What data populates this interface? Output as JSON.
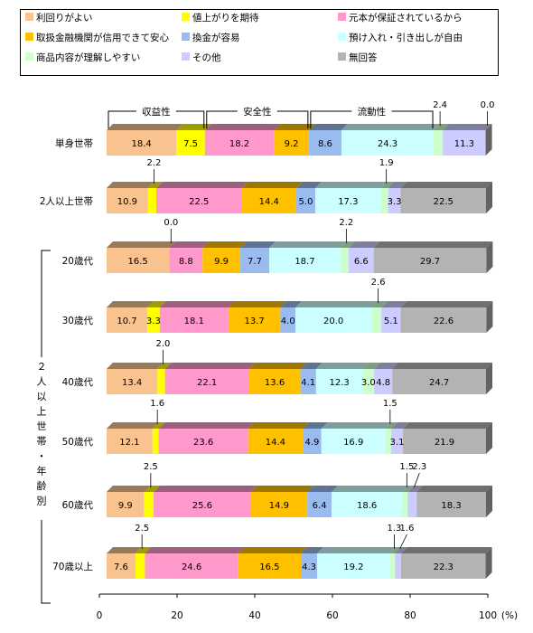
{
  "chart_data": {
    "type": "bar",
    "orientation": "horizontal",
    "stacked": true,
    "percent": true,
    "xlim": [
      0,
      100
    ],
    "x_ticks": [
      "0",
      "20",
      "40",
      "60",
      "80",
      "100"
    ],
    "x_unit": "(%)",
    "legend": {
      "placement": "top",
      "columns": 3,
      "items": [
        "利回りがよい",
        "値上がりを期待",
        "元本が保証されているから",
        "取扱金融機関が信用できて安心",
        "換金が容易",
        "預け入れ・引き出しが自由",
        "商品内容が理解しやすい",
        "その他",
        "無回答"
      ]
    },
    "colors": [
      "#F9C38F",
      "#FFFF00",
      "#FF99CC",
      "#FFC000",
      "#99BBEE",
      "#CCFFFF",
      "#CCFFCC",
      "#CCCCFF",
      "#B3B3B3"
    ],
    "groups": [
      {
        "label": "収益性",
        "series": [
          0,
          1
        ]
      },
      {
        "label": "安全性",
        "series": [
          2,
          3
        ]
      },
      {
        "label": "流動性",
        "series": [
          4,
          5
        ]
      }
    ],
    "side_label": "２人以上世帯・年齢別",
    "categories": [
      {
        "label": "単身世帯",
        "values": [
          18.4,
          7.5,
          18.2,
          9.2,
          8.6,
          24.3,
          2.4,
          11.3,
          0.0
        ],
        "labels": [
          "18.4",
          "7.5",
          "18.2",
          "9.2",
          "8.6",
          "24.3",
          "2.4",
          "11.3",
          "0.0"
        ]
      },
      {
        "label": "2人以上世帯",
        "values": [
          10.9,
          2.2,
          22.5,
          14.4,
          5.0,
          17.3,
          1.9,
          3.3,
          22.5
        ],
        "labels": [
          "10.9",
          "2.2",
          "22.5",
          "14.4",
          "5.0",
          "17.3",
          "1.9",
          "3.3",
          "22.5"
        ]
      },
      {
        "label": "20歳代",
        "values": [
          16.5,
          0.0,
          8.8,
          9.9,
          7.7,
          18.7,
          2.2,
          6.6,
          29.7
        ],
        "labels": [
          "16.5",
          "0.0",
          "8.8",
          "9.9",
          "7.7",
          "18.7",
          "2.2",
          "6.6",
          "29.7"
        ]
      },
      {
        "label": "30歳代",
        "values": [
          10.7,
          3.3,
          18.1,
          13.7,
          4.0,
          20.0,
          2.6,
          5.1,
          22.6
        ],
        "labels": [
          "10.7",
          "3.3",
          "18.1",
          "13.7",
          "4.0",
          "20.0",
          "2.6",
          "5.1",
          "22.6"
        ]
      },
      {
        "label": "40歳代",
        "values": [
          13.4,
          2.0,
          22.1,
          13.6,
          4.1,
          12.3,
          3.0,
          4.8,
          24.7
        ],
        "labels": [
          "13.4",
          "2.0",
          "22.1",
          "13.6",
          "4.1",
          "12.3",
          "3.0",
          "4.8",
          "24.7"
        ]
      },
      {
        "label": "50歳代",
        "values": [
          12.1,
          1.6,
          23.6,
          14.4,
          4.9,
          16.9,
          1.5,
          3.1,
          21.9
        ],
        "labels": [
          "12.1",
          "1.6",
          "23.6",
          "14.4",
          "4.9",
          "16.9",
          "1.5",
          "3.1",
          "21.9"
        ]
      },
      {
        "label": "60歳代",
        "values": [
          9.9,
          2.5,
          25.6,
          14.9,
          6.4,
          18.6,
          1.5,
          2.3,
          18.3
        ],
        "labels": [
          "9.9",
          "2.5",
          "25.6",
          "14.9",
          "6.4",
          "18.6",
          "1.5",
          "2.3",
          "18.3"
        ]
      },
      {
        "label": "70歳以上",
        "values": [
          7.6,
          2.5,
          24.6,
          16.5,
          4.3,
          19.2,
          1.3,
          1.6,
          22.3
        ],
        "labels": [
          "7.6",
          "2.5",
          "24.6",
          "16.5",
          "4.3",
          "19.2",
          "1.3",
          "1.6",
          "22.3"
        ]
      }
    ]
  }
}
